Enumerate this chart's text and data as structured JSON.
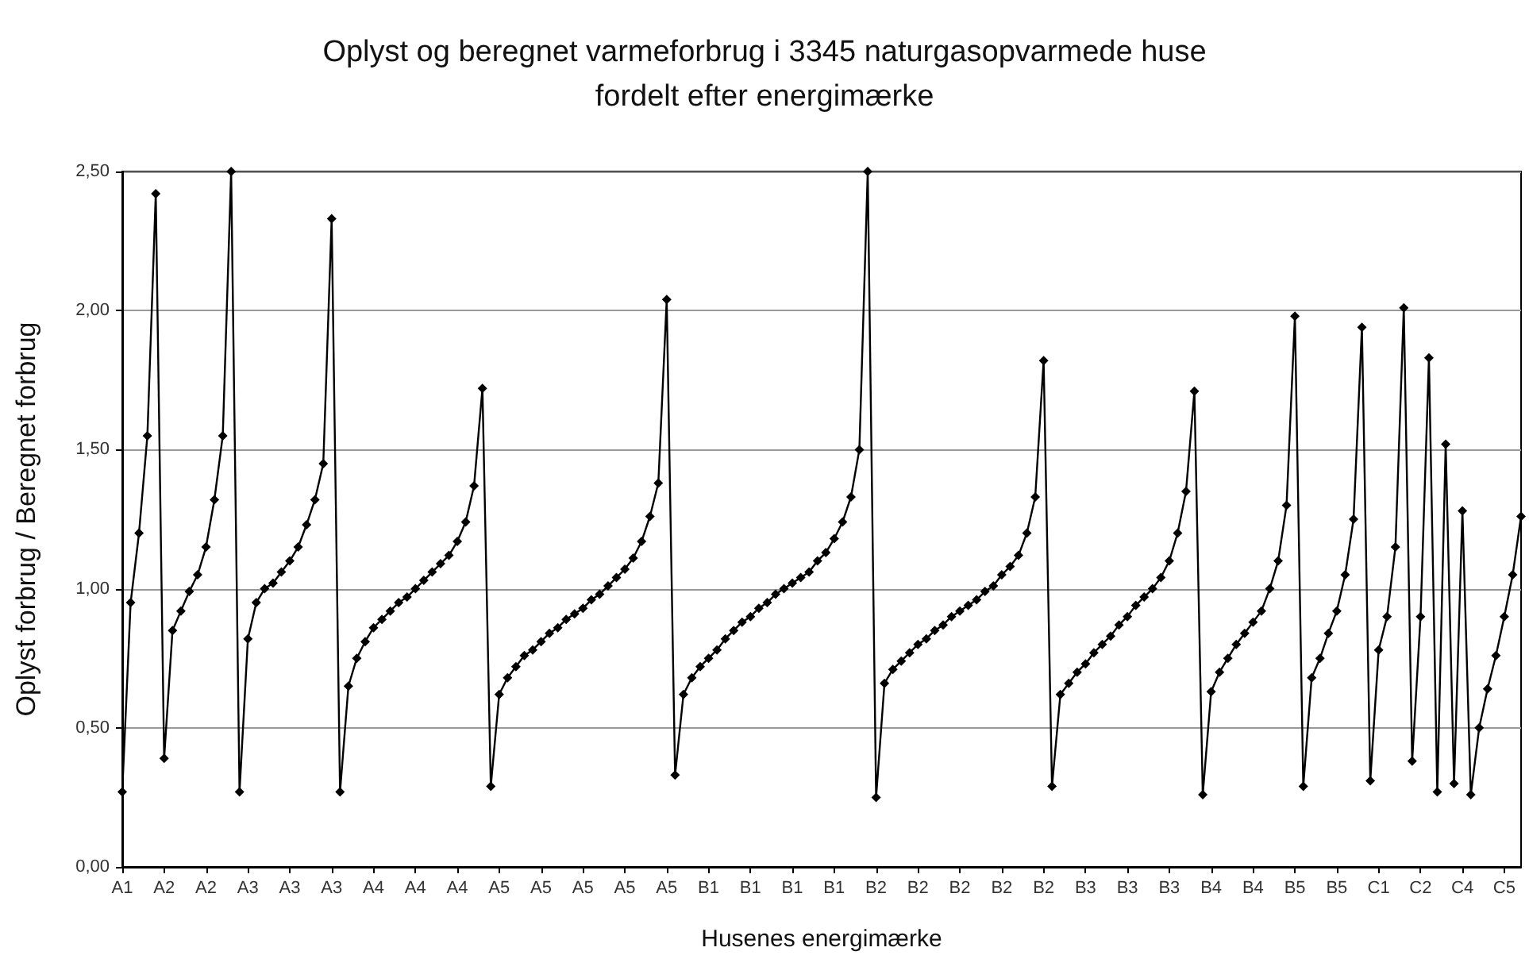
{
  "chart_data": {
    "type": "line",
    "title": "Oplyst og beregnet varmeforbrug i 3345 naturgasopvarmede huse\nfordelt efter energimærke",
    "xlabel": "Husenes energimærke",
    "ylabel": "Oplyst forbrug / Beregnet forbrug",
    "categories": [
      "A1",
      null,
      null,
      null,
      null,
      "A2",
      null,
      null,
      null,
      null,
      "A2",
      null,
      null,
      null,
      null,
      "A3",
      null,
      null,
      null,
      null,
      "A3",
      null,
      null,
      null,
      null,
      "A3",
      null,
      null,
      null,
      null,
      "A4",
      null,
      null,
      null,
      null,
      "A4",
      null,
      null,
      null,
      null,
      "A4",
      null,
      null,
      null,
      null,
      "A5",
      null,
      null,
      null,
      null,
      "A5",
      null,
      null,
      null,
      null,
      "A5",
      null,
      null,
      null,
      null,
      "A5",
      null,
      null,
      null,
      null,
      "A5",
      null,
      null,
      null,
      null,
      "B1",
      null,
      null,
      null,
      null,
      "B1",
      null,
      null,
      null,
      null,
      "B1",
      null,
      null,
      null,
      null,
      "B1",
      null,
      null,
      null,
      null,
      "B2",
      null,
      null,
      null,
      null,
      "B2",
      null,
      null,
      null,
      null,
      "B2",
      null,
      null,
      null,
      null,
      "B2",
      null,
      null,
      null,
      null,
      "B2",
      null,
      null,
      null,
      null,
      "B3",
      null,
      null,
      null,
      null,
      "B3",
      null,
      null,
      null,
      null,
      "B3",
      null,
      null,
      null,
      null,
      "B4",
      null,
      null,
      null,
      null,
      "B4",
      null,
      null,
      null,
      null,
      "B5",
      null,
      null,
      null,
      null,
      "B5",
      null,
      null,
      null,
      null,
      "C1",
      null,
      null,
      null,
      null,
      "C2",
      null,
      null,
      null,
      null,
      "C4",
      null,
      null,
      null,
      null,
      "C5",
      null,
      null
    ],
    "ylim": [
      0,
      2.5
    ],
    "yticks": [
      {
        "value": 0,
        "label": "0,00"
      },
      {
        "value": 0.5,
        "label": "0,50"
      },
      {
        "value": 1,
        "label": "1,00"
      },
      {
        "value": 1.5,
        "label": "1,50"
      },
      {
        "value": 2,
        "label": "2,00"
      },
      {
        "value": 2.5,
        "label": "2,50"
      }
    ],
    "grid": "y",
    "marker": "diamond",
    "line_style": "solid",
    "series": [
      {
        "color": "#000000",
        "values": [
          0.27,
          0.95,
          1.2,
          1.55,
          2.42,
          0.39,
          0.85,
          0.92,
          0.99,
          1.05,
          1.15,
          1.32,
          1.55,
          2.5,
          0.27,
          0.82,
          0.95,
          1.0,
          1.02,
          1.06,
          1.1,
          1.15,
          1.23,
          1.32,
          1.45,
          2.33,
          0.27,
          0.65,
          0.75,
          0.81,
          0.86,
          0.89,
          0.92,
          0.95,
          0.97,
          1.0,
          1.03,
          1.06,
          1.09,
          1.12,
          1.17,
          1.24,
          1.37,
          1.72,
          0.29,
          0.62,
          0.68,
          0.72,
          0.76,
          0.78,
          0.81,
          0.84,
          0.86,
          0.89,
          0.91,
          0.93,
          0.96,
          0.98,
          1.01,
          1.04,
          1.07,
          1.11,
          1.17,
          1.26,
          1.38,
          2.04,
          0.33,
          0.62,
          0.68,
          0.72,
          0.75,
          0.78,
          0.82,
          0.85,
          0.88,
          0.9,
          0.93,
          0.95,
          0.98,
          1.0,
          1.02,
          1.04,
          1.06,
          1.1,
          1.13,
          1.18,
          1.24,
          1.33,
          1.5,
          2.5,
          0.25,
          0.66,
          0.71,
          0.74,
          0.77,
          0.8,
          0.82,
          0.85,
          0.87,
          0.9,
          0.92,
          0.94,
          0.96,
          0.99,
          1.01,
          1.05,
          1.08,
          1.12,
          1.2,
          1.33,
          1.82,
          0.29,
          0.62,
          0.66,
          0.7,
          0.73,
          0.77,
          0.8,
          0.83,
          0.87,
          0.9,
          0.94,
          0.97,
          1.0,
          1.04,
          1.1,
          1.2,
          1.35,
          1.71,
          0.26,
          0.63,
          0.7,
          0.75,
          0.8,
          0.84,
          0.88,
          0.92,
          1.0,
          1.1,
          1.3,
          1.98,
          0.29,
          0.68,
          0.75,
          0.84,
          0.92,
          1.05,
          1.25,
          1.94,
          0.31,
          0.78,
          0.9,
          1.15,
          2.01,
          0.38,
          0.9,
          1.83,
          0.27,
          1.52,
          0.3,
          1.28,
          0.26,
          0.5,
          0.64,
          0.76,
          0.9,
          1.05,
          1.26
        ]
      }
    ]
  }
}
